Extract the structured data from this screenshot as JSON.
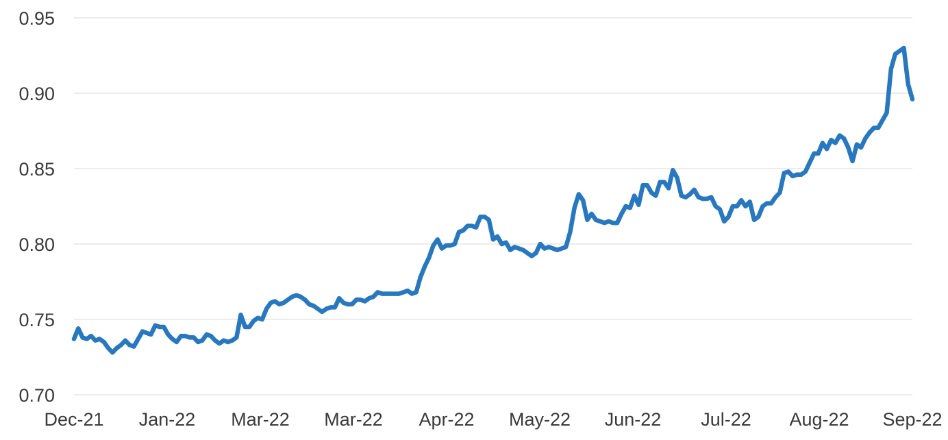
{
  "chart_data": {
    "type": "line",
    "title": "",
    "xlabel": "",
    "ylabel": "",
    "ylim": [
      0.7,
      0.95
    ],
    "y_ticks": [
      "0.70",
      "0.75",
      "0.80",
      "0.85",
      "0.90",
      "0.95"
    ],
    "x_tick_labels": [
      "Dec-21",
      "Jan-22",
      "Mar-22",
      "Mar-22",
      "Apr-22",
      "May-22",
      "Jun-22",
      "Jul-22",
      "Aug-22",
      "Sep-22"
    ],
    "grid": true,
    "legend": "none",
    "color": "#2878c0",
    "series": [
      {
        "values": [
          0.737,
          0.744,
          0.738,
          0.737,
          0.739,
          0.736,
          0.737,
          0.735,
          0.731,
          0.728,
          0.731,
          0.733,
          0.736,
          0.733,
          0.732,
          0.737,
          0.742,
          0.741,
          0.74,
          0.746,
          0.745,
          0.745,
          0.74,
          0.737,
          0.735,
          0.739,
          0.739,
          0.738,
          0.738,
          0.735,
          0.736,
          0.74,
          0.739,
          0.736,
          0.734,
          0.736,
          0.735,
          0.736,
          0.738,
          0.753,
          0.745,
          0.745,
          0.749,
          0.751,
          0.75,
          0.757,
          0.761,
          0.762,
          0.76,
          0.761,
          0.763,
          0.765,
          0.766,
          0.765,
          0.763,
          0.76,
          0.759,
          0.757,
          0.755,
          0.757,
          0.758,
          0.758,
          0.764,
          0.761,
          0.76,
          0.76,
          0.763,
          0.763,
          0.762,
          0.764,
          0.765,
          0.768,
          0.767,
          0.767,
          0.767,
          0.767,
          0.767,
          0.768,
          0.769,
          0.767,
          0.768,
          0.778,
          0.785,
          0.791,
          0.799,
          0.803,
          0.797,
          0.799,
          0.799,
          0.8,
          0.808,
          0.809,
          0.812,
          0.812,
          0.811,
          0.818,
          0.818,
          0.816,
          0.803,
          0.805,
          0.8,
          0.801,
          0.796,
          0.798,
          0.797,
          0.796,
          0.794,
          0.792,
          0.794,
          0.8,
          0.797,
          0.798,
          0.797,
          0.796,
          0.797,
          0.798,
          0.808,
          0.824,
          0.833,
          0.829,
          0.816,
          0.82,
          0.816,
          0.815,
          0.814,
          0.815,
          0.814,
          0.814,
          0.82,
          0.825,
          0.824,
          0.832,
          0.826,
          0.839,
          0.839,
          0.834,
          0.832,
          0.841,
          0.841,
          0.837,
          0.849,
          0.844,
          0.832,
          0.831,
          0.833,
          0.836,
          0.831,
          0.83,
          0.83,
          0.831,
          0.825,
          0.823,
          0.815,
          0.818,
          0.825,
          0.825,
          0.829,
          0.825,
          0.828,
          0.816,
          0.818,
          0.825,
          0.827,
          0.827,
          0.831,
          0.834,
          0.847,
          0.848,
          0.845,
          0.846,
          0.846,
          0.848,
          0.854,
          0.86,
          0.86,
          0.867,
          0.863,
          0.869,
          0.867,
          0.872,
          0.87,
          0.864,
          0.855,
          0.866,
          0.864,
          0.87,
          0.874,
          0.877,
          0.877,
          0.882,
          0.887,
          0.916,
          0.926,
          0.928,
          0.93,
          0.906,
          0.896
        ]
      }
    ]
  }
}
